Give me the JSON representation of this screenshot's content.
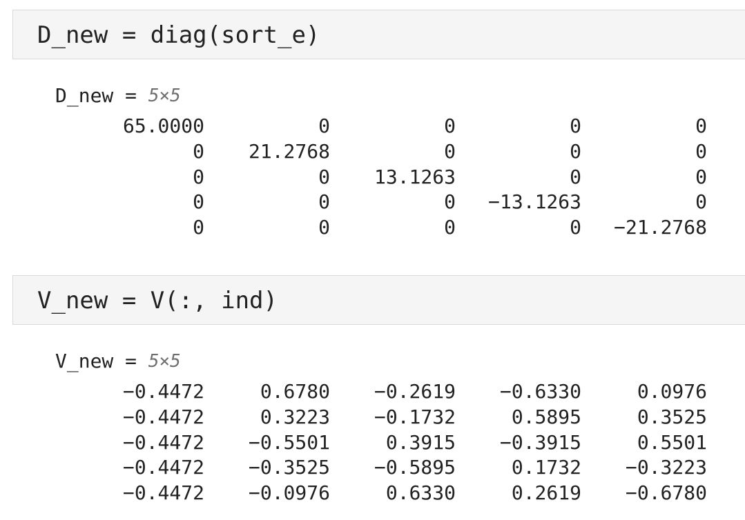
{
  "cells": [
    {
      "code": "D_new = diag(sort_e)",
      "output": {
        "label": "D_new =",
        "size": "5×5",
        "rows": [
          [
            "65.0000",
            "0",
            "0",
            "0",
            "0"
          ],
          [
            "0",
            "21.2768",
            "0",
            "0",
            "0"
          ],
          [
            "0",
            "0",
            "13.1263",
            "0",
            "0"
          ],
          [
            "0",
            "0",
            "0",
            "−13.1263",
            "0"
          ],
          [
            "0",
            "0",
            "0",
            "0",
            "−21.2768"
          ]
        ]
      }
    },
    {
      "code": "V_new = V(:, ind)",
      "output": {
        "label": "V_new =",
        "size": "5×5",
        "rows": [
          [
            "−0.4472",
            "0.6780",
            "−0.2619",
            "−0.6330",
            "0.0976"
          ],
          [
            "−0.4472",
            "0.3223",
            "−0.1732",
            "0.5895",
            "0.3525"
          ],
          [
            "−0.4472",
            "−0.5501",
            "0.3915",
            "−0.3915",
            "0.5501"
          ],
          [
            "−0.4472",
            "−0.3525",
            "−0.5895",
            "0.1732",
            "−0.3223"
          ],
          [
            "−0.4472",
            "−0.0976",
            "0.6330",
            "0.2619",
            "−0.6780"
          ]
        ]
      }
    }
  ]
}
